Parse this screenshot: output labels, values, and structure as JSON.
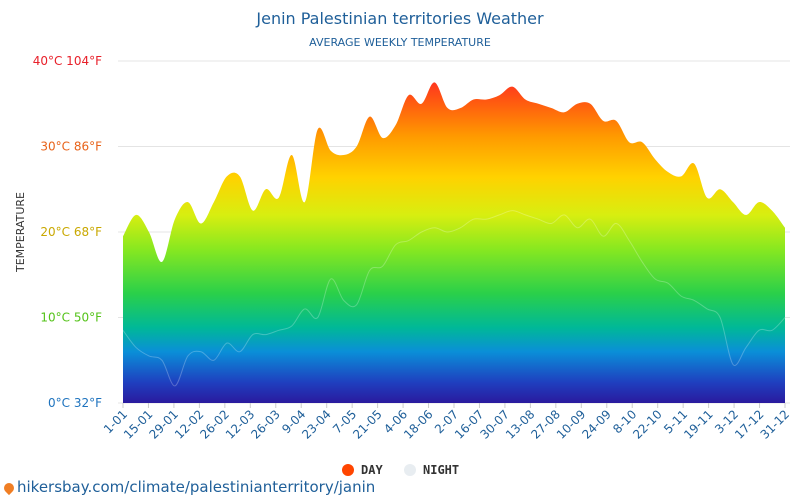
{
  "chart_data": {
    "type": "area",
    "title": "Jenin Palestinian territories Weather",
    "subtitle": "AVERAGE WEEKLY TEMPERATURE",
    "ylabel": "TEMPERATURE",
    "ylim": [
      0,
      40
    ],
    "yticks": [
      {
        "value": 0,
        "label": "0°C 32°F",
        "color": "#1e73be"
      },
      {
        "value": 10,
        "label": "10°C 50°F",
        "color": "#55c31a"
      },
      {
        "value": 20,
        "label": "20°C 68°F",
        "color": "#c9a800"
      },
      {
        "value": 30,
        "label": "30°C 86°F",
        "color": "#e8631a"
      },
      {
        "value": 40,
        "label": "40°C 104°F",
        "color": "#e8202a"
      }
    ],
    "xtick_labels": [
      "1-01",
      "15-01",
      "29-01",
      "12-02",
      "26-02",
      "12-03",
      "26-03",
      "9-04",
      "23-04",
      "7-05",
      "21-05",
      "4-06",
      "18-06",
      "2-07",
      "16-07",
      "30-07",
      "13-08",
      "27-08",
      "10-09",
      "24-09",
      "8-10",
      "22-10",
      "5-11",
      "19-11",
      "3-12",
      "17-12",
      "31-12"
    ],
    "legend_position": "bottom-center",
    "grid": true,
    "series": [
      {
        "name": "DAY",
        "color": "#ff4500",
        "values": [
          19.5,
          22,
          20,
          16.5,
          21.5,
          23.5,
          21,
          23.5,
          26.5,
          26.5,
          22.5,
          25,
          24,
          29,
          23.5,
          32,
          29.5,
          29,
          30,
          33.5,
          31,
          32.5,
          36,
          35,
          37.5,
          34.5,
          34.5,
          35.5,
          35.5,
          36,
          37,
          35.5,
          35,
          34.5,
          34,
          35,
          35,
          33,
          33,
          30.5,
          30.5,
          28.5,
          27,
          26.5,
          28,
          24,
          25,
          23.5,
          22,
          23.5,
          22.5,
          20.5
        ]
      },
      {
        "name": "NIGHT",
        "color": "#e8edf1",
        "values": [
          8.5,
          6.5,
          5.5,
          5,
          2,
          5.5,
          6,
          5,
          7,
          6,
          8,
          8,
          8.5,
          9,
          11,
          10,
          14.5,
          12,
          11.5,
          15.5,
          16,
          18.5,
          19,
          20,
          20.5,
          20,
          20.5,
          21.5,
          21.5,
          22,
          22.5,
          22,
          21.5,
          21,
          22,
          20.5,
          21.5,
          19.5,
          21,
          19,
          16.5,
          14.5,
          14,
          12.5,
          12,
          11,
          10,
          4.5,
          6.5,
          8.5,
          8.5,
          10
        ]
      }
    ]
  },
  "legend": {
    "day_label": "DAY",
    "night_label": "NIGHT",
    "day_color": "#ff4500",
    "night_color": "#e8edf1"
  },
  "source": {
    "text": "hikersbay.com/climate/palestinianterritory/janin",
    "icon": "map-pin-icon"
  }
}
